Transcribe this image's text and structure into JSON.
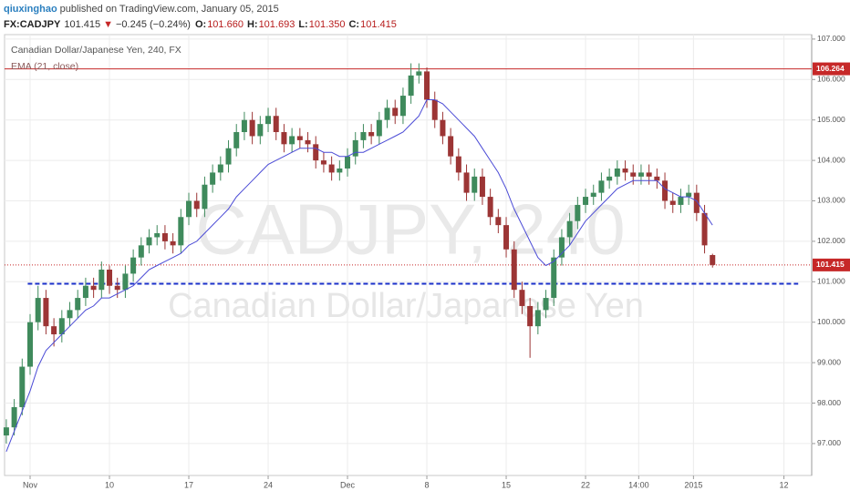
{
  "header": {
    "author": "qiuxinghao",
    "published": "published on TradingView.com, January 05, 2015",
    "symbol": "FX:CADJPY",
    "last": "101.415",
    "arrow": "▼",
    "change": "−0.245 (−0.24%)",
    "ohlc": [
      {
        "label": "O:",
        "value": "101.660"
      },
      {
        "label": "H:",
        "value": "101.693"
      },
      {
        "label": "L:",
        "value": "101.350"
      },
      {
        "label": "C:",
        "value": "101.415"
      }
    ]
  },
  "chart_data": {
    "type": "candlestick",
    "legend_title": "Canadian Dollar/Japanese Yen, 240, FX",
    "indicator": "EMA (21, close)",
    "watermark_symbol": "CADJPY, 240",
    "watermark_name": "Canadian Dollar/Japanese Yen",
    "up_color": "#3f8a5c",
    "down_color": "#9c3535",
    "ema_color": "#4b4bd6",
    "grid": true,
    "x": [
      -3,
      -2,
      -1,
      0,
      1,
      2,
      3,
      4,
      5,
      6,
      7,
      8,
      9,
      10,
      11,
      12,
      13,
      14,
      15,
      16,
      17,
      18,
      19,
      20,
      21,
      22,
      23,
      24,
      25,
      26,
      27,
      28,
      29,
      30,
      31,
      32,
      33,
      34,
      35,
      36,
      37,
      38,
      39,
      40,
      41,
      42,
      43,
      44,
      45,
      46,
      47,
      48,
      49,
      50,
      51,
      52,
      53,
      54,
      55,
      56,
      57,
      58,
      59,
      60,
      61,
      62,
      63,
      64,
      65,
      66,
      67,
      68,
      69,
      70,
      71,
      72,
      73,
      74,
      75,
      76,
      77,
      78,
      79,
      80,
      81,
      82,
      83,
      84,
      85,
      86
    ],
    "open": [
      97.2,
      97.4,
      97.9,
      98.9,
      100.0,
      100.6,
      99.9,
      99.7,
      100.1,
      100.3,
      100.6,
      100.9,
      100.8,
      101.3,
      100.9,
      100.8,
      101.2,
      101.6,
      101.9,
      102.1,
      102.2,
      102.0,
      101.9,
      102.6,
      103.0,
      102.8,
      103.4,
      103.7,
      103.9,
      104.3,
      104.7,
      105.0,
      104.6,
      104.9,
      105.1,
      104.7,
      104.4,
      104.6,
      104.5,
      104.4,
      104.0,
      103.9,
      103.7,
      103.8,
      104.1,
      104.5,
      104.7,
      104.6,
      105.0,
      105.3,
      105.1,
      105.6,
      106.1,
      106.2,
      105.5,
      105.0,
      104.6,
      104.1,
      103.7,
      103.2,
      103.6,
      103.1,
      102.6,
      102.4,
      101.8,
      100.8,
      100.4,
      99.9,
      100.3,
      100.6,
      101.6,
      102.1,
      102.5,
      102.9,
      103.1,
      103.2,
      103.5,
      103.6,
      103.8,
      103.7,
      103.6,
      103.7,
      103.6,
      103.5,
      103.0,
      102.9,
      103.1,
      103.2,
      102.7,
      101.66
    ],
    "high": [
      97.6,
      98.1,
      99.1,
      100.2,
      100.9,
      100.8,
      100.1,
      100.3,
      100.5,
      100.8,
      101.1,
      101.1,
      101.5,
      101.4,
      101.1,
      101.4,
      101.8,
      102.1,
      102.3,
      102.4,
      102.4,
      102.2,
      102.8,
      103.2,
      103.2,
      103.6,
      103.9,
      104.1,
      104.5,
      104.9,
      105.2,
      105.2,
      105.1,
      105.3,
      105.3,
      104.9,
      104.8,
      104.8,
      104.7,
      104.6,
      104.2,
      104.1,
      104.0,
      104.3,
      104.7,
      104.9,
      104.9,
      105.2,
      105.5,
      105.5,
      105.8,
      106.4,
      106.4,
      106.3,
      105.7,
      105.2,
      104.8,
      104.3,
      103.9,
      103.8,
      103.8,
      103.3,
      102.8,
      102.6,
      102.0,
      101.0,
      100.6,
      100.5,
      100.8,
      101.8,
      102.3,
      102.7,
      103.1,
      103.3,
      103.4,
      103.7,
      103.8,
      104.0,
      104.0,
      103.9,
      103.9,
      103.9,
      103.8,
      103.7,
      103.2,
      103.3,
      103.4,
      103.4,
      102.9,
      101.693
    ],
    "low": [
      97.0,
      97.2,
      97.7,
      98.7,
      99.8,
      99.7,
      99.4,
      99.5,
      99.9,
      100.1,
      100.4,
      100.6,
      100.6,
      100.7,
      100.6,
      100.6,
      101.0,
      101.4,
      101.7,
      101.9,
      101.8,
      101.7,
      101.7,
      102.4,
      102.6,
      102.6,
      103.2,
      103.5,
      103.7,
      104.1,
      104.5,
      104.4,
      104.4,
      104.7,
      104.5,
      104.2,
      104.2,
      104.3,
      104.2,
      103.8,
      103.7,
      103.5,
      103.5,
      103.6,
      103.9,
      104.3,
      104.4,
      104.4,
      104.8,
      104.9,
      104.9,
      105.4,
      105.9,
      105.3,
      104.8,
      104.4,
      103.9,
      103.5,
      103.0,
      103.0,
      102.9,
      102.4,
      102.2,
      101.6,
      100.6,
      100.2,
      99.12,
      99.7,
      100.1,
      100.4,
      101.4,
      101.9,
      102.3,
      102.7,
      102.9,
      103.0,
      103.3,
      103.4,
      103.5,
      103.4,
      103.4,
      103.4,
      103.3,
      102.8,
      102.7,
      102.7,
      102.9,
      102.5,
      101.7,
      101.35
    ],
    "close": [
      97.4,
      97.9,
      98.9,
      100.0,
      100.6,
      99.9,
      99.7,
      100.1,
      100.3,
      100.6,
      100.9,
      100.8,
      101.3,
      100.9,
      100.8,
      101.2,
      101.6,
      101.9,
      102.1,
      102.2,
      102.0,
      101.9,
      102.6,
      103.0,
      102.8,
      103.4,
      103.7,
      103.9,
      104.3,
      104.7,
      105.0,
      104.6,
      104.9,
      105.1,
      104.7,
      104.4,
      104.6,
      104.5,
      104.4,
      104.0,
      103.9,
      103.7,
      103.8,
      104.1,
      104.5,
      104.7,
      104.6,
      105.0,
      105.3,
      105.1,
      105.6,
      106.1,
      106.2,
      105.5,
      105.0,
      104.6,
      104.1,
      103.7,
      103.2,
      103.6,
      103.1,
      102.6,
      102.4,
      101.8,
      100.8,
      100.4,
      99.9,
      100.3,
      100.6,
      101.6,
      102.1,
      102.5,
      102.9,
      103.1,
      103.2,
      103.5,
      103.6,
      103.8,
      103.7,
      103.6,
      103.7,
      103.6,
      103.5,
      103.0,
      102.9,
      103.1,
      103.2,
      102.7,
      101.9,
      101.415
    ],
    "ema": [
      96.8,
      97.3,
      97.8,
      98.3,
      98.9,
      99.3,
      99.5,
      99.7,
      99.9,
      100.1,
      100.3,
      100.4,
      100.6,
      100.6,
      100.7,
      100.8,
      100.9,
      101.1,
      101.3,
      101.4,
      101.5,
      101.6,
      101.7,
      101.9,
      102.0,
      102.2,
      102.4,
      102.6,
      102.8,
      103.1,
      103.3,
      103.5,
      103.7,
      103.9,
      104.0,
      104.1,
      104.2,
      104.3,
      104.3,
      104.3,
      104.2,
      104.2,
      104.1,
      104.1,
      104.2,
      104.2,
      104.3,
      104.4,
      104.5,
      104.6,
      104.7,
      104.9,
      105.1,
      105.5,
      105.5,
      105.4,
      105.2,
      105.0,
      104.8,
      104.6,
      104.3,
      104.0,
      103.7,
      103.3,
      102.8,
      102.4,
      102.0,
      101.6,
      101.4,
      101.5,
      101.7,
      101.9,
      102.2,
      102.5,
      102.7,
      102.9,
      103.1,
      103.3,
      103.4,
      103.5,
      103.5,
      103.5,
      103.5,
      103.3,
      103.2,
      103.1,
      103.1,
      103.0,
      102.7,
      102.4
    ],
    "xlim": [
      -3.22,
      98.5
    ],
    "xticks": [
      {
        "value": 0,
        "label": "Nov"
      },
      {
        "value": 10,
        "label": "10"
      },
      {
        "value": 20,
        "label": "17"
      },
      {
        "value": 30,
        "label": "24"
      },
      {
        "value": 40,
        "label": "Dec"
      },
      {
        "value": 50,
        "label": "8"
      },
      {
        "value": 60,
        "label": "15"
      },
      {
        "value": 70,
        "label": "22"
      },
      {
        "value": 76.7,
        "label": "14:00"
      },
      {
        "value": 83.6,
        "label": "2015"
      },
      {
        "value": 95,
        "label": "12"
      }
    ],
    "ylim": [
      96.21,
      107.11
    ],
    "yticks": [
      {
        "value": 97,
        "label": "97.000"
      },
      {
        "value": 98,
        "label": "98.000"
      },
      {
        "value": 99,
        "label": "99.000"
      },
      {
        "value": 100,
        "label": "100.000"
      },
      {
        "value": 101,
        "label": "101.000"
      },
      {
        "value": 102,
        "label": "102.000"
      },
      {
        "value": 103,
        "label": "103.000"
      },
      {
        "value": 104,
        "label": "104.000"
      },
      {
        "value": 105,
        "label": "105.000"
      },
      {
        "value": 106,
        "label": "106.000"
      },
      {
        "value": 107,
        "label": "107.000"
      }
    ],
    "levels": [
      {
        "value": 106.264,
        "label": "106.264",
        "color": "#c62828",
        "style": "solid"
      },
      {
        "value": 101.415,
        "label": "101.415",
        "color": "#c62828",
        "style": "dotted"
      }
    ],
    "support_line": {
      "x": [
        -0.3,
        96.8
      ],
      "y": [
        100.95,
        100.95
      ],
      "color": "#1a2fc9"
    }
  }
}
